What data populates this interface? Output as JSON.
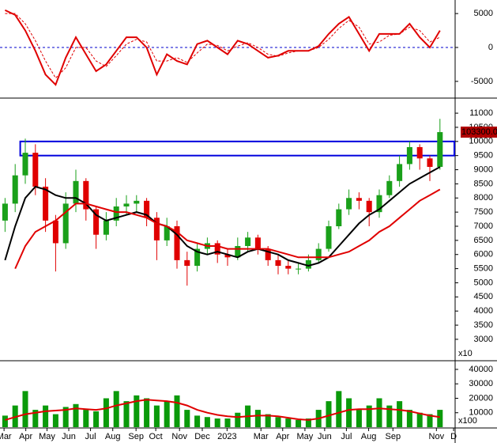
{
  "chart_data": [
    {
      "type": "oscillator",
      "x": [
        1,
        3,
        5,
        7,
        9,
        11,
        13,
        15,
        17,
        19,
        21,
        23,
        25,
        27,
        29,
        31,
        33,
        35,
        37,
        39,
        41,
        43,
        45,
        47,
        49,
        51,
        53,
        55,
        57,
        59,
        61,
        63,
        65,
        67,
        69,
        71,
        73,
        75,
        77,
        79,
        81,
        83,
        85,
        87
      ],
      "xlim": [
        0,
        90
      ],
      "ylim": [
        -7000,
        7000
      ],
      "yticks": [
        -5000,
        0,
        5000
      ],
      "zero_line": {
        "value": 0,
        "color": "#0000cc"
      },
      "series": [
        {
          "color": "#e00000",
          "dashed": false,
          "values": [
            5500,
            4800,
            2500,
            -500,
            -4000,
            -5500,
            -1500,
            1500,
            -1000,
            -3500,
            -2500,
            -500,
            1500,
            1500,
            0,
            -4000,
            -1000,
            -2000,
            -2500,
            500,
            1000,
            0,
            -1000,
            1000,
            500,
            -500,
            -1500,
            -1200,
            -500,
            -500,
            -500,
            200,
            2000,
            3500,
            4500,
            2000,
            -500,
            2000,
            2000,
            2000,
            3500,
            1500,
            0,
            2500
          ]
        },
        {
          "color": "#e00000",
          "dashed": true,
          "values": [
            5000,
            5000,
            3500,
            1000,
            -2000,
            -4500,
            -3000,
            0,
            0,
            -2000,
            -2800,
            -1200,
            500,
            1200,
            800,
            -2000,
            -2000,
            -1500,
            -2200,
            -800,
            500,
            300,
            -500,
            200,
            700,
            0,
            -1000,
            -1300,
            -800,
            -500,
            -500,
            0,
            1200,
            2800,
            4000,
            3000,
            500,
            800,
            1800,
            2000,
            3000,
            2500,
            800,
            1500
          ]
        }
      ]
    },
    {
      "type": "candlestick",
      "x": [
        1,
        3,
        5,
        7,
        9,
        11,
        13,
        15,
        17,
        19,
        21,
        23,
        25,
        27,
        29,
        31,
        33,
        35,
        37,
        39,
        41,
        43,
        45,
        47,
        49,
        51,
        53,
        55,
        57,
        59,
        61,
        63,
        65,
        67,
        69,
        71,
        73,
        75,
        77,
        79,
        81,
        83,
        85,
        87
      ],
      "xlim": [
        0,
        90
      ],
      "ylim": [
        2270,
        11450
      ],
      "yticks": [
        3000,
        3500,
        4000,
        4500,
        5000,
        5500,
        6000,
        6500,
        7000,
        7500,
        8000,
        8500,
        9000,
        9500,
        10000,
        10500,
        11000
      ],
      "unit_label": "x10",
      "last_label": "103300.0",
      "up_color": "#1aa01a",
      "down_color": "#e00000",
      "zone": {
        "values": [
          9500,
          10000
        ],
        "color": "#0000dd"
      },
      "open": [
        7200,
        7800,
        8800,
        9600,
        8400,
        7200,
        6400,
        7800,
        8600,
        7600,
        6700,
        7200,
        7700,
        7800,
        7900,
        7300,
        6500,
        7000,
        5800,
        5600,
        6200,
        6400,
        6000,
        5900,
        6300,
        6600,
        6200,
        5800,
        5600,
        5500,
        5500,
        5800,
        6200,
        7000,
        7600,
        8000,
        7900,
        7500,
        8100,
        8600,
        9200,
        9800,
        9400,
        9100
      ],
      "high": [
        8000,
        9200,
        10100,
        9900,
        8700,
        7400,
        8200,
        9000,
        8700,
        7700,
        7500,
        8000,
        8100,
        8100,
        8000,
        7500,
        7300,
        7200,
        6100,
        6400,
        6600,
        6500,
        6200,
        6600,
        6800,
        6700,
        6300,
        6000,
        5800,
        5700,
        6000,
        6400,
        7200,
        7800,
        8300,
        8200,
        8000,
        8300,
        8800,
        9500,
        10000,
        9900,
        9500,
        10800
      ],
      "low": [
        6800,
        7500,
        8500,
        8100,
        6800,
        5400,
        6200,
        7500,
        7200,
        6200,
        6500,
        7000,
        7400,
        7500,
        7000,
        5800,
        6300,
        5500,
        4900,
        5400,
        6000,
        5700,
        5600,
        5800,
        6100,
        6000,
        5600,
        5300,
        5300,
        5300,
        5400,
        5700,
        6100,
        6900,
        7400,
        7600,
        7000,
        7300,
        8000,
        8400,
        9000,
        9000,
        8600,
        9000
      ],
      "close": [
        7800,
        8800,
        9600,
        8400,
        7200,
        6400,
        7800,
        8600,
        7600,
        6700,
        7200,
        7700,
        7800,
        7900,
        7300,
        6500,
        7000,
        5800,
        5600,
        6200,
        6400,
        6000,
        5900,
        6300,
        6600,
        6200,
        5800,
        5600,
        5500,
        5500,
        5800,
        6200,
        7000,
        7600,
        8000,
        7900,
        7500,
        8100,
        8600,
        9200,
        9800,
        9400,
        9100,
        10330
      ],
      "series": [
        {
          "color": "#000000",
          "values": [
            5800,
            7000,
            8000,
            8400,
            8300,
            8100,
            8000,
            8000,
            7800,
            7400,
            7200,
            7300,
            7400,
            7500,
            7400,
            7100,
            7000,
            6700,
            6300,
            6100,
            6000,
            6100,
            6000,
            5900,
            6100,
            6200,
            6100,
            6000,
            5800,
            5700,
            5600,
            5700,
            5900,
            6300,
            6700,
            7100,
            7400,
            7600,
            7900,
            8200,
            8500,
            8700,
            8900,
            9100
          ]
        },
        {
          "color": "#e00000",
          "values": [
            null,
            5500,
            6300,
            6800,
            7000,
            7200,
            7500,
            7800,
            7800,
            7700,
            7600,
            7500,
            7500,
            7400,
            7300,
            7100,
            7000,
            6800,
            6500,
            6400,
            6300,
            6300,
            6200,
            6200,
            6200,
            6200,
            6200,
            6100,
            6000,
            5900,
            5900,
            5900,
            5900,
            6000,
            6100,
            6300,
            6500,
            6800,
            7000,
            7300,
            7600,
            7900,
            8100,
            8300
          ]
        }
      ]
    },
    {
      "type": "volume",
      "x": [
        1,
        3,
        5,
        7,
        9,
        11,
        13,
        15,
        17,
        19,
        21,
        23,
        25,
        27,
        29,
        31,
        33,
        35,
        37,
        39,
        41,
        43,
        45,
        47,
        49,
        51,
        53,
        55,
        57,
        59,
        61,
        63,
        65,
        67,
        69,
        71,
        73,
        75,
        77,
        79,
        81,
        83,
        85,
        87
      ],
      "xlim": [
        0,
        90
      ],
      "ylim": [
        0,
        44900
      ],
      "yticks": [
        10000,
        20000,
        30000,
        40000
      ],
      "unit_label": "x100",
      "color": "#0a9a0a",
      "values": [
        8000,
        15000,
        25000,
        12000,
        15000,
        9000,
        14000,
        16000,
        12000,
        11000,
        20000,
        25000,
        18000,
        22000,
        20000,
        15000,
        18000,
        22000,
        12000,
        8000,
        7000,
        6000,
        6000,
        10000,
        15000,
        12000,
        9000,
        7000,
        6000,
        5000,
        6000,
        12000,
        18000,
        25000,
        20000,
        12000,
        15000,
        20000,
        15000,
        18000,
        12000,
        10000,
        9000,
        12000
      ],
      "series": [
        {
          "color": "#e00000",
          "values": [
            5000,
            7000,
            9000,
            10000,
            11000,
            11500,
            12000,
            13000,
            12500,
            12000,
            13000,
            15000,
            16500,
            18000,
            19000,
            18500,
            18000,
            17000,
            15000,
            12000,
            10000,
            8500,
            7500,
            7000,
            7500,
            8000,
            8000,
            7500,
            6500,
            5500,
            5000,
            6000,
            8000,
            10000,
            12000,
            12500,
            12500,
            13000,
            12500,
            12000,
            11000,
            9500,
            8000,
            7000
          ]
        }
      ],
      "xticks": [
        {
          "value": 0.8,
          "label": "Mar"
        },
        {
          "value": 5.1,
          "label": "Apr"
        },
        {
          "value": 9.3,
          "label": "May"
        },
        {
          "value": 13.6,
          "label": "Jun"
        },
        {
          "value": 17.9,
          "label": "Jul"
        },
        {
          "value": 22.3,
          "label": "Aug"
        },
        {
          "value": 26.9,
          "label": "Sep"
        },
        {
          "value": 30.8,
          "label": "Oct"
        },
        {
          "value": 35.5,
          "label": "Nov"
        },
        {
          "value": 40,
          "label": "Dec"
        },
        {
          "value": 44.9,
          "label": "2023"
        },
        {
          "value": 51.6,
          "label": "Mar"
        },
        {
          "value": 55.9,
          "label": "Apr"
        },
        {
          "value": 60.3,
          "label": "May"
        },
        {
          "value": 64.2,
          "label": "Jun"
        },
        {
          "value": 68.5,
          "label": "Jul"
        },
        {
          "value": 72.9,
          "label": "Aug"
        },
        {
          "value": 77.7,
          "label": "Sep"
        },
        {
          "value": 86.3,
          "label": "Nov"
        },
        {
          "value": 89.7,
          "label": "D"
        }
      ]
    }
  ]
}
